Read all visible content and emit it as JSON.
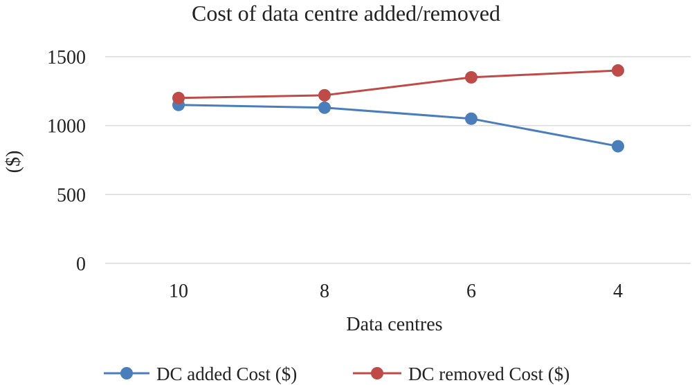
{
  "chart_data": {
    "type": "line",
    "title": "Cost of data centre added/removed",
    "xlabel": "Data centres",
    "ylabel": "($)",
    "categories": [
      "10",
      "8",
      "6",
      "4"
    ],
    "ylim": [
      0,
      1500
    ],
    "yticks": [
      0,
      500,
      1000,
      1500
    ],
    "grid": true,
    "legend_position": "bottom",
    "series": [
      {
        "name": "DC added Cost ($)",
        "values": [
          1150,
          1130,
          1050,
          850
        ],
        "color": "#4a7ebb"
      },
      {
        "name": "DC removed Cost ($)",
        "values": [
          1200,
          1220,
          1350,
          1400
        ],
        "color": "#be4b48"
      }
    ]
  }
}
